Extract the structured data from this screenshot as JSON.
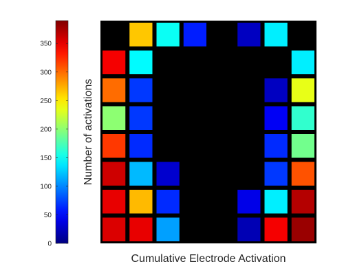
{
  "chart_data": {
    "type": "heatmap",
    "xlabel": "Cumulative Electrode Activation",
    "ylabel": "Number of activations",
    "colormap": "jet",
    "clim": [
      0,
      390
    ],
    "colorbar": {
      "ticks": [
        0,
        50,
        100,
        150,
        200,
        250,
        300,
        350
      ],
      "tick_labels": [
        "0",
        "50",
        "100",
        "150",
        "200",
        "250",
        "300",
        "350"
      ]
    },
    "grid": {
      "rows": 8,
      "cols": 8
    },
    "values": [
      [
        null,
        265,
        150,
        60,
        null,
        25,
        140,
        null
      ],
      [
        345,
        145,
        null,
        null,
        null,
        null,
        null,
        140
      ],
      [
        300,
        70,
        null,
        null,
        null,
        null,
        25,
        235
      ],
      [
        200,
        70,
        null,
        null,
        null,
        null,
        45,
        165
      ],
      [
        320,
        65,
        null,
        null,
        null,
        null,
        65,
        190
      ],
      [
        360,
        120,
        30,
        null,
        null,
        null,
        70,
        310
      ],
      [
        350,
        270,
        65,
        null,
        null,
        40,
        140,
        370
      ],
      [
        355,
        350,
        110,
        null,
        null,
        20,
        345,
        380
      ]
    ],
    "empty_color": "#000000"
  }
}
